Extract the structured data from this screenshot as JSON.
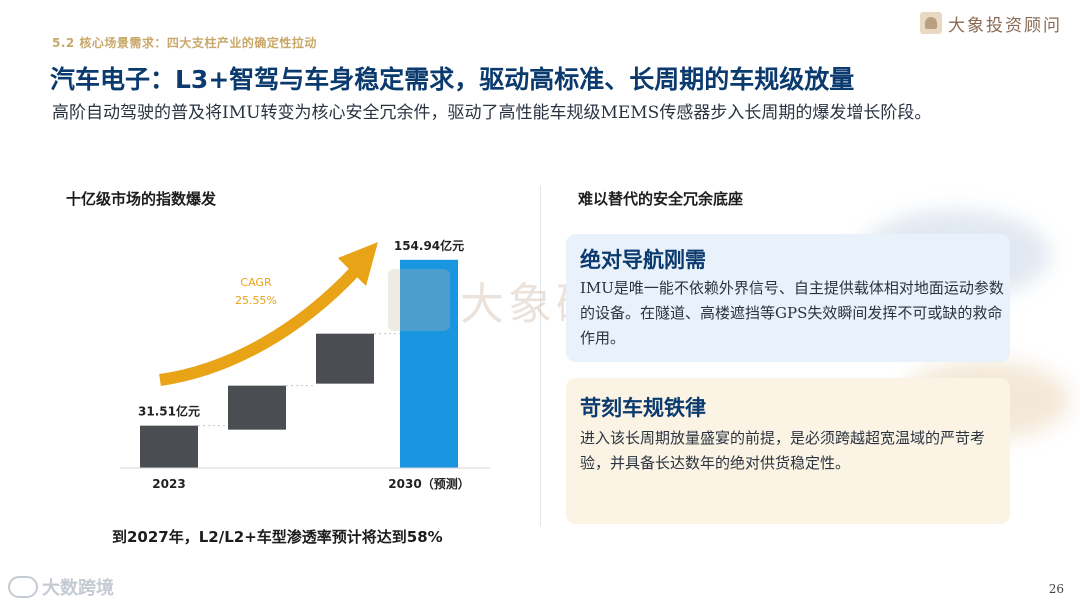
{
  "header": {
    "section_label": "5.2 核心场景需求：四大支柱产业的确定性拉动",
    "brand": "大象投资顾问",
    "title": "汽车电子：L3+智驾与车身稳定需求，驱动高标准、长周期的车规级放量",
    "intro": "高阶自动驾驶的普及将IMU转变为核心安全冗余件，驱动了高性能车规级MEMS传感器步入长周期的爆发增长阶段。"
  },
  "left_panel": {
    "title": "十亿级市场的指数爆发",
    "footnote": "到2027年，L2/L2+车型渗透率预计将达到58%"
  },
  "watermark": {
    "text": "大象研究院"
  },
  "chart_data": {
    "type": "bar",
    "categories": [
      "2023",
      "",
      "",
      "2030（预测）"
    ],
    "bars": [
      {
        "label": "2023",
        "value": 31.51,
        "value_label": "31.51亿元",
        "color": "#4a4d52"
      },
      {
        "label": "",
        "value": null,
        "value_label": "",
        "color": "#4a4d52"
      },
      {
        "label": "",
        "value": null,
        "value_label": "",
        "color": "#4a4d52"
      },
      {
        "label": "2030（预测）",
        "value": 154.94,
        "value_label": "154.94亿元",
        "color": "#1a96e0"
      }
    ],
    "annotation": {
      "line1": "CAGR",
      "line2": "25.55%",
      "color": "#e8a317"
    },
    "unit": "亿元",
    "ylim": [
      0,
      160
    ]
  },
  "right_panel": {
    "title": "难以替代的安全冗余底座",
    "cards": [
      {
        "title": "绝对导航刚需",
        "body": "IMU是唯一能不依赖外界信号、自主提供载体相对地面运动参数的设备。在隧道、高楼遮挡等GPS失效瞬间发挥不可或缺的救命作用。"
      },
      {
        "title": "苛刻车规铁律",
        "body": "进入该长周期放量盛宴的前提，是必须跨越超宽温域的严苛考验，并具备长达数年的绝对供货稳定性。"
      }
    ]
  },
  "footer": {
    "logo_text": "大数跨境",
    "page_number": "26"
  }
}
